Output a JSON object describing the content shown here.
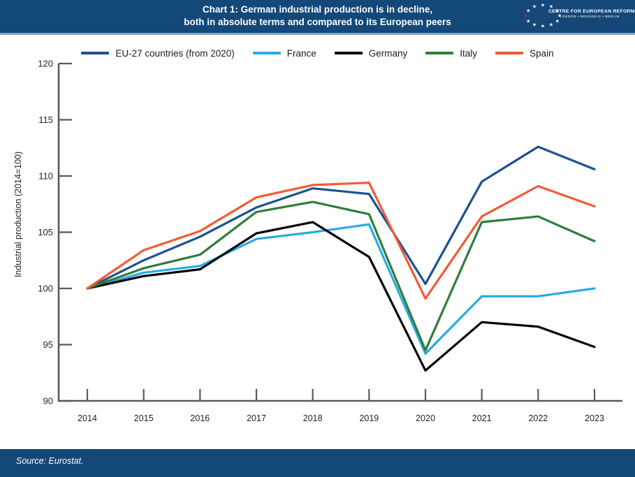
{
  "header": {
    "title_line1": "Chart 1: German industrial production is in decline,",
    "title_line2": "both in absolute terms and compared to its European peers",
    "logo": {
      "org_name": "CENTRE FOR EUROPEAN REFORM",
      "cities": "LONDON • BRUSSELS • BERLIN",
      "star_color": "#ffffff",
      "red_star_color": "#e8192c"
    }
  },
  "footer": {
    "source": "Source: Eurostat."
  },
  "colors": {
    "header_bg": "#134879",
    "accent_line": "#7fa6ca",
    "axis": "#58595b",
    "text": "#231f20"
  },
  "chart_data": {
    "type": "line",
    "title": "Chart 1: German industrial production is in decline, both in absolute terms and compared to its European peers",
    "xlabel": "",
    "ylabel": "Industrial production (2014=100)",
    "categories": [
      "2014",
      "2015",
      "2016",
      "2017",
      "2018",
      "2019",
      "2020",
      "2021",
      "2022",
      "2023"
    ],
    "y_ticks": [
      90,
      95,
      100,
      105,
      110,
      115,
      120
    ],
    "ylim": [
      90,
      120
    ],
    "grid": false,
    "legend_position": "top",
    "series": [
      {
        "name": "EU-27 countries (from 2020)",
        "color": "#1c5191",
        "values": [
          100,
          102.5,
          104.6,
          107.2,
          108.9,
          108.4,
          100.4,
          109.5,
          112.6,
          110.6
        ]
      },
      {
        "name": "France",
        "color": "#29abe2",
        "values": [
          100,
          101.4,
          102.0,
          104.4,
          105.0,
          105.7,
          94.2,
          99.3,
          99.3,
          100.0
        ]
      },
      {
        "name": "Germany",
        "color": "#000000",
        "values": [
          100,
          101.1,
          101.7,
          104.9,
          105.9,
          102.8,
          92.7,
          97.0,
          96.6,
          94.8
        ]
      },
      {
        "name": "Italy",
        "color": "#2e7d3b",
        "values": [
          100,
          101.8,
          103.0,
          106.8,
          107.7,
          106.6,
          94.5,
          105.9,
          106.4,
          104.2
        ]
      },
      {
        "name": "Spain",
        "color": "#f15b35",
        "values": [
          100,
          103.4,
          105.1,
          108.1,
          109.2,
          109.4,
          99.1,
          106.4,
          109.1,
          107.3
        ]
      }
    ]
  }
}
